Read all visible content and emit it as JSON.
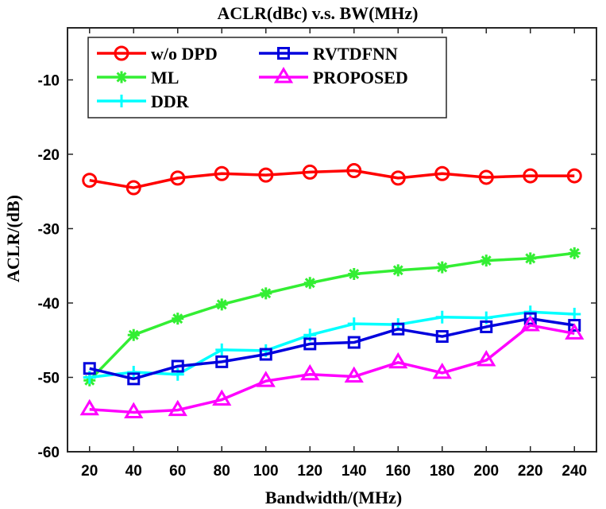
{
  "chart_data": {
    "type": "line",
    "title": "ACLR(dBc) v.s. BW(MHz)",
    "xlabel": "Bandwidth/(MHz)",
    "ylabel": "ACLR/(dB)",
    "x": [
      20,
      40,
      60,
      80,
      100,
      120,
      140,
      160,
      180,
      200,
      220,
      240
    ],
    "xlim": [
      10,
      250
    ],
    "ylim": [
      -60,
      -3
    ],
    "xticks": [
      "20",
      "40",
      "60",
      "80",
      "100",
      "120",
      "140",
      "160",
      "180",
      "200",
      "220",
      "240"
    ],
    "yticks": [
      "-10",
      "-20",
      "-30",
      "-40",
      "-50",
      "-60"
    ],
    "grid": false,
    "legend_position": "top-left",
    "series": [
      {
        "name": "w/o DPD",
        "color": "#ff0000",
        "marker": "circle",
        "values": [
          -23.5,
          -24.5,
          -23.2,
          -22.6,
          -22.8,
          -22.4,
          -22.2,
          -23.2,
          -22.6,
          -23.1,
          -22.9,
          -22.9
        ]
      },
      {
        "name": "ML",
        "color": "#33ee33",
        "marker": "asterisk",
        "values": [
          -50.4,
          -44.3,
          -42.1,
          -40.2,
          -38.7,
          -37.3,
          -36.1,
          -35.6,
          -35.2,
          -34.3,
          -34.0,
          -33.3
        ]
      },
      {
        "name": "DDR",
        "color": "#00ffff",
        "marker": "plus",
        "values": [
          -50.0,
          -49.3,
          -49.6,
          -46.3,
          -46.4,
          -44.3,
          -42.8,
          -42.9,
          -41.9,
          -42.0,
          -41.2,
          -41.5
        ]
      },
      {
        "name": "RVTDFNN",
        "color": "#0000dd",
        "marker": "square",
        "values": [
          -48.8,
          -50.2,
          -48.5,
          -47.9,
          -46.9,
          -45.5,
          -45.3,
          -43.5,
          -44.5,
          -43.2,
          -42.1,
          -43.0
        ]
      },
      {
        "name": "PROPOSED",
        "color": "#ff00ff",
        "marker": "triangle",
        "values": [
          -54.3,
          -54.7,
          -54.4,
          -53.0,
          -50.5,
          -49.6,
          -49.9,
          -48.0,
          -49.4,
          -47.7,
          -43.0,
          -44.1
        ]
      }
    ]
  }
}
